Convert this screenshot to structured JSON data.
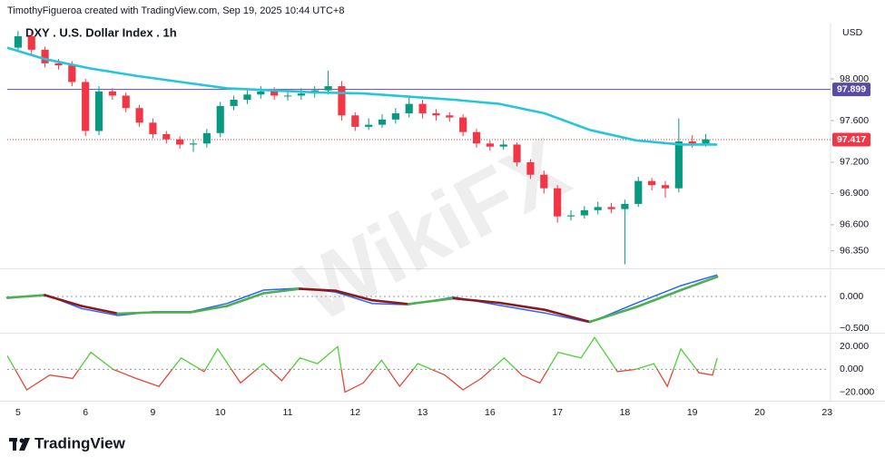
{
  "header": {
    "attribution": "TimothyFigueroa created with TradingView.com, Sep 19, 2025 10:44 UTC+8",
    "currency": "USD"
  },
  "footer": {
    "brand": "TradingView"
  },
  "watermark": {
    "text": "WikiFX"
  },
  "chart_data": [
    {
      "type": "candlestick",
      "title": "DXY . U.S. Dollar Index . 1h",
      "xlim": [
        -0.16,
        12.01
      ],
      "xticks": [
        {
          "value": 0,
          "label": "5"
        },
        {
          "value": 1,
          "label": "6"
        },
        {
          "value": 2,
          "label": "9"
        },
        {
          "value": 3,
          "label": "10"
        },
        {
          "value": 4,
          "label": "11"
        },
        {
          "value": 5,
          "label": "12"
        },
        {
          "value": 6,
          "label": "13"
        },
        {
          "value": 7,
          "label": "16"
        },
        {
          "value": 8,
          "label": "17"
        },
        {
          "value": 9,
          "label": "18"
        },
        {
          "value": 10,
          "label": "19"
        },
        {
          "value": 11,
          "label": "20"
        },
        {
          "value": 12,
          "label": "23"
        }
      ],
      "ylim": [
        96.19,
        98.54
      ],
      "yticks": [
        {
          "value": 98,
          "label": "98.000"
        },
        {
          "value": 97.6,
          "label": "97.600"
        },
        {
          "value": 97.2,
          "label": "97.200"
        },
        {
          "value": 96.9,
          "label": "96.900"
        },
        {
          "value": 96.6,
          "label": "96.600"
        },
        {
          "value": 96.35,
          "label": "96.350"
        }
      ],
      "up_color": "#089981",
      "down_color": "#f23645",
      "x": [
        0,
        0.2,
        0.4,
        0.6,
        0.8,
        1,
        1.2,
        1.4,
        1.6,
        1.8,
        2,
        2.2,
        2.4,
        2.6,
        2.8,
        3,
        3.2,
        3.4,
        3.6,
        3.8,
        4,
        4.2,
        4.4,
        4.6,
        4.8,
        5,
        5.2,
        5.4,
        5.6,
        5.8,
        6,
        6.2,
        6.4,
        6.6,
        6.8,
        7,
        7.2,
        7.4,
        7.6,
        7.8,
        8,
        8.2,
        8.4,
        8.6,
        8.8,
        9,
        9.2,
        9.4,
        9.6,
        9.8,
        10,
        10.2
      ],
      "open": [
        98.3,
        98.41,
        98.28,
        98.15,
        98.13,
        97.97,
        97.5,
        97.88,
        97.84,
        97.72,
        97.58,
        97.47,
        97.42,
        97.37,
        97.38,
        97.48,
        97.74,
        97.8,
        97.85,
        97.88,
        97.84,
        97.84,
        97.86,
        97.89,
        97.93,
        97.65,
        97.54,
        97.56,
        97.61,
        97.67,
        97.76,
        97.67,
        97.65,
        97.63,
        97.49,
        97.38,
        97.35,
        97.37,
        97.2,
        97.08,
        96.95,
        96.68,
        96.69,
        96.74,
        96.77,
        96.75,
        96.8,
        97.02,
        96.98,
        96.95,
        97.4,
        97.38
      ],
      "high": [
        98.46,
        98.45,
        98.31,
        98.19,
        98.17,
        98.0,
        97.93,
        97.91,
        97.87,
        97.75,
        97.62,
        97.5,
        97.45,
        97.42,
        97.52,
        97.78,
        97.84,
        97.9,
        97.93,
        97.92,
        97.89,
        97.91,
        97.93,
        98.08,
        97.98,
        97.68,
        97.62,
        97.66,
        97.72,
        97.83,
        97.8,
        97.71,
        97.68,
        97.66,
        97.52,
        97.41,
        97.41,
        97.39,
        97.23,
        97.12,
        96.98,
        96.74,
        96.78,
        96.82,
        96.81,
        96.84,
        97.06,
        97.05,
        97.02,
        97.62,
        97.46,
        97.47
      ],
      "low": [
        98.26,
        98.24,
        98.11,
        98.09,
        97.93,
        97.45,
        97.46,
        97.8,
        97.68,
        97.54,
        97.43,
        97.38,
        97.33,
        97.3,
        97.34,
        97.44,
        97.7,
        97.76,
        97.81,
        97.8,
        97.79,
        97.8,
        97.82,
        97.85,
        97.6,
        97.5,
        97.51,
        97.53,
        97.57,
        97.63,
        97.62,
        97.6,
        97.59,
        97.45,
        97.34,
        97.31,
        97.32,
        97.16,
        97.04,
        96.9,
        96.62,
        96.64,
        96.66,
        96.7,
        96.71,
        96.22,
        96.77,
        96.93,
        96.86,
        96.91,
        97.34,
        97.35
      ],
      "close": [
        98.41,
        98.28,
        98.15,
        98.13,
        97.97,
        97.5,
        97.88,
        97.84,
        97.72,
        97.58,
        97.47,
        97.42,
        97.37,
        97.38,
        97.48,
        97.74,
        97.8,
        97.85,
        97.88,
        97.84,
        97.84,
        97.86,
        97.89,
        97.93,
        97.65,
        97.54,
        97.56,
        97.61,
        97.67,
        97.76,
        97.67,
        97.65,
        97.63,
        97.49,
        97.38,
        97.35,
        97.37,
        97.2,
        97.08,
        96.95,
        96.68,
        96.69,
        96.74,
        96.77,
        96.75,
        96.8,
        97.02,
        96.98,
        96.95,
        97.4,
        97.38,
        97.42
      ],
      "overlays": [
        {
          "color": "#26c6da",
          "x": [
            -0.16,
            0.4,
            1.08,
            1.75,
            2.42,
            3.1,
            3.77,
            4.44,
            5.12,
            5.79,
            6.46,
            7.14,
            7.81,
            8.48,
            9.16,
            9.83,
            10.37
          ],
          "values": [
            98.3,
            98.19,
            98.1,
            98.03,
            97.97,
            97.91,
            97.89,
            97.87,
            97.86,
            97.83,
            97.8,
            97.76,
            97.67,
            97.51,
            97.41,
            97.37,
            97.37
          ]
        }
      ],
      "price_lines": [
        {
          "value": 97.899,
          "color": "#5b4ba8",
          "style": "solid"
        },
        {
          "value": 97.417,
          "color": "#f23645",
          "style": "dotted"
        }
      ]
    },
    {
      "type": "line",
      "ylim": [
        -0.543,
        0.414
      ],
      "yticks": [
        {
          "value": 0,
          "label": "0.000"
        },
        {
          "value": -0.5,
          "label": "−0.500"
        }
      ],
      "series": [
        {
          "color": "#2962ff",
          "x": [
            -0.16,
            0.4,
            0.94,
            1.48,
            2.02,
            2.56,
            3.1,
            3.64,
            4.18,
            4.71,
            5.25,
            5.79,
            6.46,
            7.14,
            7.81,
            8.48,
            9.16,
            9.83,
            10.37
          ],
          "values": [
            -0.03,
            0.03,
            -0.19,
            -0.3,
            -0.24,
            -0.24,
            -0.11,
            0.1,
            0.13,
            0.07,
            -0.11,
            -0.13,
            -0.01,
            -0.14,
            -0.26,
            -0.41,
            -0.11,
            0.17,
            0.34
          ]
        },
        {
          "color_up": "#4caf50",
          "color_down": "#8b1a1a",
          "x": [
            -0.16,
            0.4,
            0.94,
            1.48,
            2.02,
            2.56,
            3.1,
            3.64,
            4.18,
            4.71,
            5.25,
            5.79,
            6.46,
            7.14,
            7.81,
            8.48,
            9.16,
            9.83,
            10.37
          ],
          "values": [
            -0.02,
            0.02,
            -0.15,
            -0.27,
            -0.25,
            -0.25,
            -0.15,
            0.05,
            0.12,
            0.09,
            -0.06,
            -0.12,
            -0.03,
            -0.1,
            -0.21,
            -0.4,
            -0.17,
            0.1,
            0.31
          ]
        }
      ]
    },
    {
      "type": "line",
      "ylim": [
        -26,
        29.8
      ],
      "yticks": [
        {
          "value": 20,
          "label": "20.000"
        },
        {
          "value": 0,
          "label": "0.000"
        },
        {
          "value": -20,
          "label": "−20.000"
        }
      ],
      "series": [
        {
          "color_above": "#4cd137",
          "color_below": "#e0483c",
          "x": [
            -0.16,
            0.13,
            0.47,
            0.81,
            1.08,
            1.41,
            1.75,
            2.09,
            2.42,
            2.76,
            2.96,
            3.3,
            3.64,
            3.91,
            4.18,
            4.44,
            4.74,
            4.85,
            5.12,
            5.39,
            5.66,
            5.93,
            6.33,
            6.6,
            6.87,
            7.21,
            7.47,
            7.74,
            8.01,
            8.35,
            8.55,
            8.89,
            9.16,
            9.43,
            9.63,
            9.83,
            10.1,
            10.3,
            10.37
          ],
          "values": [
            12,
            -18,
            -5,
            -8,
            15,
            0,
            -8,
            -15,
            10,
            -2,
            18,
            -12,
            5,
            -10,
            10,
            5,
            20,
            -20,
            -12,
            8,
            -15,
            5,
            -5,
            -18,
            -8,
            10,
            -5,
            -12,
            15,
            10,
            28,
            -2,
            0,
            5,
            -15,
            18,
            -3,
            -5,
            10
          ]
        }
      ]
    }
  ]
}
